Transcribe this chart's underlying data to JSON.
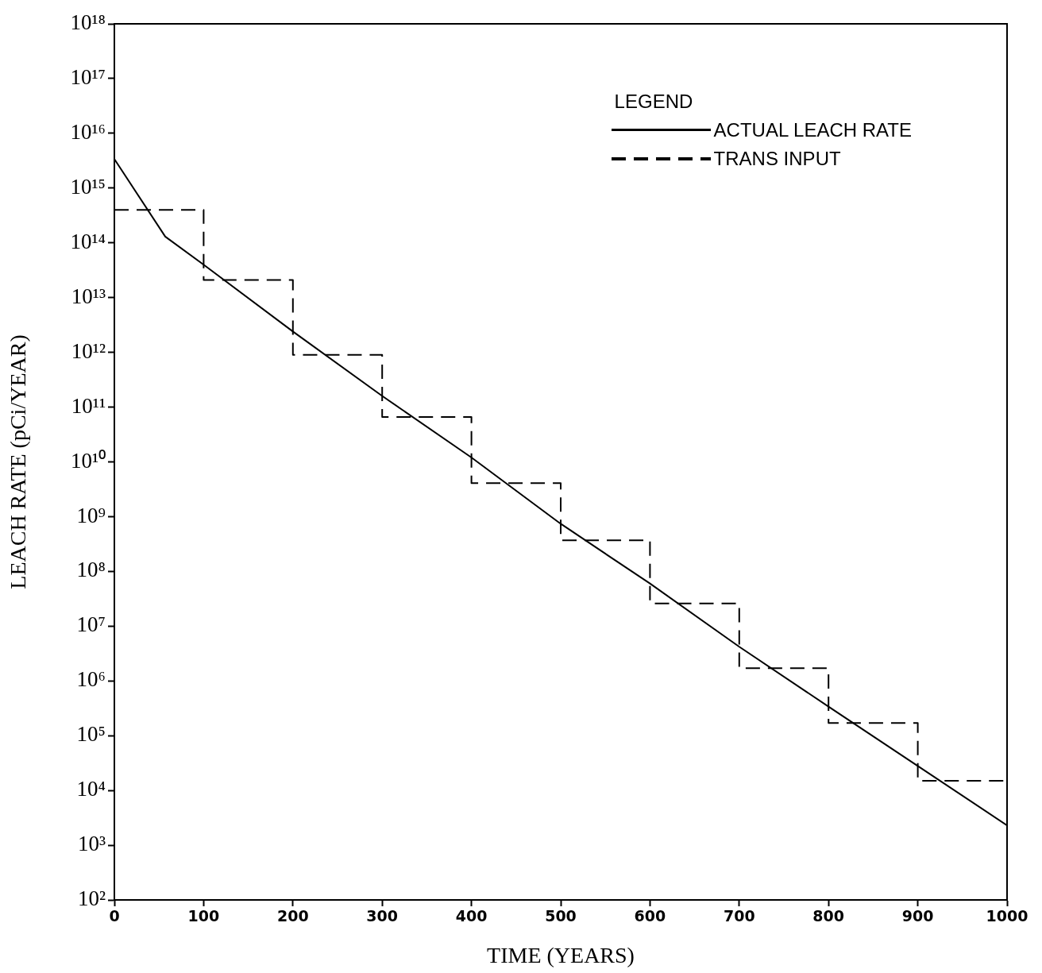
{
  "chart_data": {
    "type": "line",
    "xlabel": "TIME (YEARS)",
    "ylabel": "LEACH RATE (pCi/YEAR)",
    "legend_title": "LEGEND",
    "legend": "top right",
    "log": "y",
    "xlim": [
      0,
      1000
    ],
    "xticks": [
      0,
      100,
      200,
      300,
      400,
      500,
      600,
      700,
      800,
      900,
      1000
    ],
    "ylim": [
      100.0,
      1e+18
    ],
    "yticks": [
      {
        "value": 100.0,
        "label": "10²"
      },
      {
        "value": 1000.0,
        "label": "10³"
      },
      {
        "value": 10000.0,
        "label": "10⁴"
      },
      {
        "value": 100000.0,
        "label": "10⁵"
      },
      {
        "value": 1000000.0,
        "label": "10⁶"
      },
      {
        "value": 10000000.0,
        "label": "10⁷"
      },
      {
        "value": 100000000.0,
        "label": "10⁸"
      },
      {
        "value": 1000000000.0,
        "label": "10⁹"
      },
      {
        "value": 10000000000.0,
        "label": "10¹⁰"
      },
      {
        "value": 100000000000.0,
        "label": "10¹¹"
      },
      {
        "value": 1000000000000.0,
        "label": "10¹²"
      },
      {
        "value": 10000000000000.0,
        "label": "10¹³"
      },
      {
        "value": 100000000000000.0,
        "label": "10¹⁴"
      },
      {
        "value": 1000000000000000.0,
        "label": "10¹⁵"
      },
      {
        "value": 1e+16,
        "label": "10¹⁶"
      },
      {
        "value": 1e+17,
        "label": "10¹⁷"
      },
      {
        "value": 1e+18,
        "label": "10¹⁸"
      }
    ],
    "series": [
      {
        "name": "ACTUAL LEACH RATE",
        "type": "line",
        "line_style": "solid",
        "color": "#000000",
        "x": [
          0,
          57,
          100,
          200,
          300,
          400,
          500,
          600,
          700,
          800,
          900,
          1000
        ],
        "values": [
          3400000000000000.0,
          130000000000000.0,
          40000000000000.0,
          2400000000000.0,
          160000000000.0,
          12000000000.0,
          740000000.0,
          60000000.0,
          4200000.0,
          340000.0,
          28000.0,
          2300.0
        ]
      },
      {
        "name": "TRANS INPUT",
        "type": "step",
        "line_style": "dashed",
        "color": "#000000",
        "x": [
          0,
          100,
          200,
          300,
          400,
          500,
          600,
          700,
          800,
          900,
          1000
        ],
        "values": [
          400000000000000.0,
          21000000000000.0,
          900000000000.0,
          66000000000.0,
          4100000000.0,
          370000000.0,
          26000000.0,
          1700000.0,
          170000.0,
          15000.0,
          15000.0
        ]
      }
    ]
  }
}
